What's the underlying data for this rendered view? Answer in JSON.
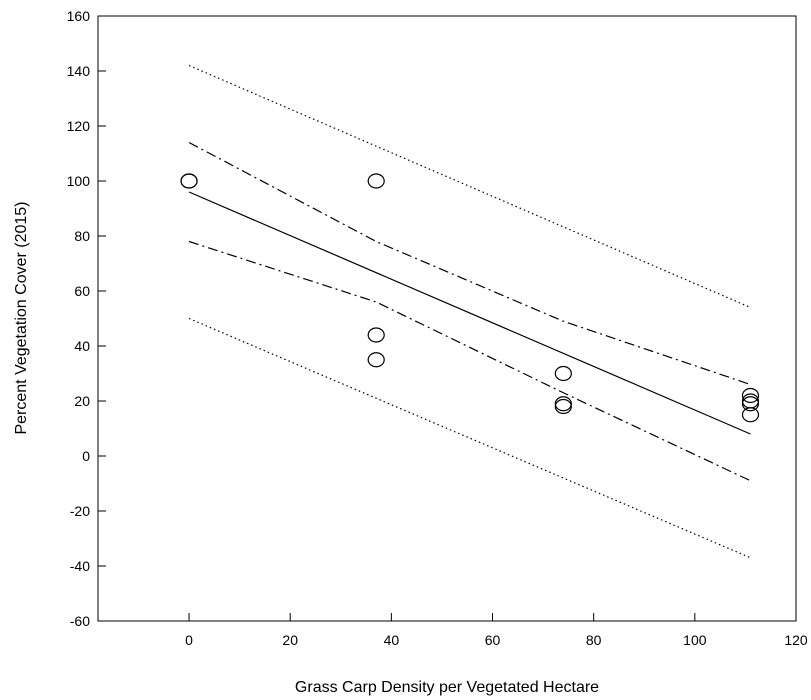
{
  "chart_data": {
    "type": "scatter",
    "xlabel": "Grass Carp Density per Vegetated Hectare",
    "ylabel": "Percent Vegetation Cover (2015)",
    "xlim": [
      -18,
      120
    ],
    "ylim": [
      -60,
      160
    ],
    "xticks": [
      0,
      20,
      40,
      60,
      80,
      100,
      120
    ],
    "yticks": [
      -60,
      -40,
      -20,
      0,
      20,
      40,
      60,
      80,
      100,
      120,
      140,
      160
    ],
    "grid": false,
    "legend": "none",
    "points": [
      {
        "x": 0,
        "y": 100
      },
      {
        "x": 0,
        "y": 100
      },
      {
        "x": 37,
        "y": 100
      },
      {
        "x": 37,
        "y": 44
      },
      {
        "x": 37,
        "y": 35
      },
      {
        "x": 74,
        "y": 30
      },
      {
        "x": 74,
        "y": 19
      },
      {
        "x": 74,
        "y": 18
      },
      {
        "x": 111,
        "y": 22
      },
      {
        "x": 111,
        "y": 20
      },
      {
        "x": 111,
        "y": 19
      },
      {
        "x": 111,
        "y": 15
      }
    ],
    "regression_line": {
      "x": [
        0,
        111
      ],
      "y": [
        96,
        8
      ]
    },
    "confidence_band": {
      "upper": {
        "x": [
          0,
          37,
          74,
          111
        ],
        "y": [
          114,
          78,
          49,
          26
        ]
      },
      "lower": {
        "x": [
          0,
          37,
          74,
          111
        ],
        "y": [
          78,
          56,
          23,
          -9
        ]
      }
    },
    "prediction_band": {
      "upper": {
        "x": [
          0,
          111
        ],
        "y": [
          142,
          54
        ]
      },
      "lower": {
        "x": [
          0,
          111
        ],
        "y": [
          50,
          -37
        ]
      }
    }
  }
}
